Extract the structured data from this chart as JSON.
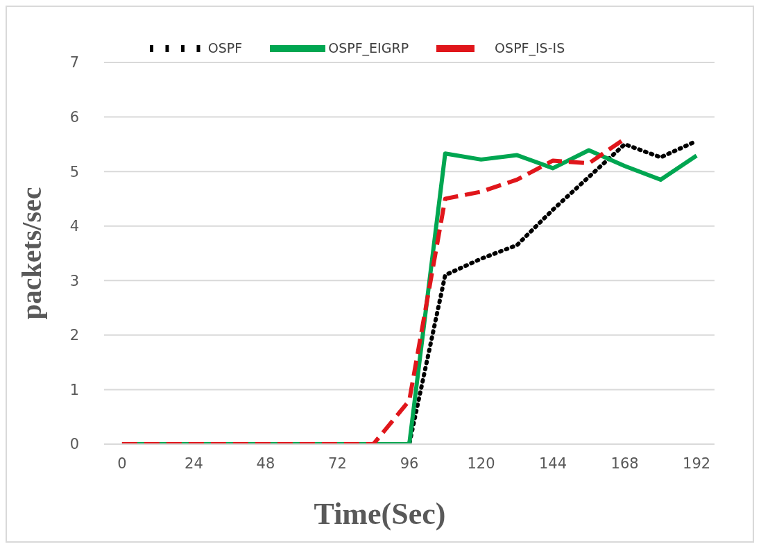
{
  "chart_data": {
    "type": "line",
    "xlabel": "Time(Sec)",
    "ylabel": "packets/sec",
    "x": [
      0,
      12,
      24,
      36,
      48,
      60,
      72,
      84,
      96,
      108,
      120,
      132,
      144,
      156,
      168,
      180,
      192
    ],
    "series": [
      {
        "name": "OSPF",
        "color": "#000000",
        "line_style": "dotted",
        "values": [
          null,
          null,
          null,
          null,
          null,
          null,
          null,
          0,
          0,
          3.1,
          3.4,
          3.65,
          4.3,
          4.9,
          5.5,
          5.26,
          5.56
        ]
      },
      {
        "name": "OSPF_EIGRP",
        "color": "#00a651",
        "line_style": "solid",
        "values": [
          0,
          0,
          0,
          0,
          0,
          0,
          0,
          0,
          0,
          5.33,
          5.22,
          5.3,
          5.06,
          5.39,
          5.1,
          4.85,
          5.29
        ]
      },
      {
        "name": "OSPF_IS-IS",
        "color": "#e0161b",
        "line_style": "dashed",
        "values": [
          0,
          0,
          0,
          0,
          0,
          0,
          0,
          0,
          0.8,
          4.5,
          4.63,
          4.85,
          5.2,
          5.15,
          5.6,
          null,
          null
        ]
      }
    ],
    "xlim": [
      -6,
      198
    ],
    "xticks": [
      0,
      24,
      48,
      72,
      96,
      120,
      144,
      168,
      192
    ],
    "ylim": [
      0,
      7
    ],
    "yticks": [
      0,
      1,
      2,
      3,
      4,
      5,
      6,
      7
    ],
    "grid": "y",
    "legend": "top",
    "marker": "none"
  }
}
